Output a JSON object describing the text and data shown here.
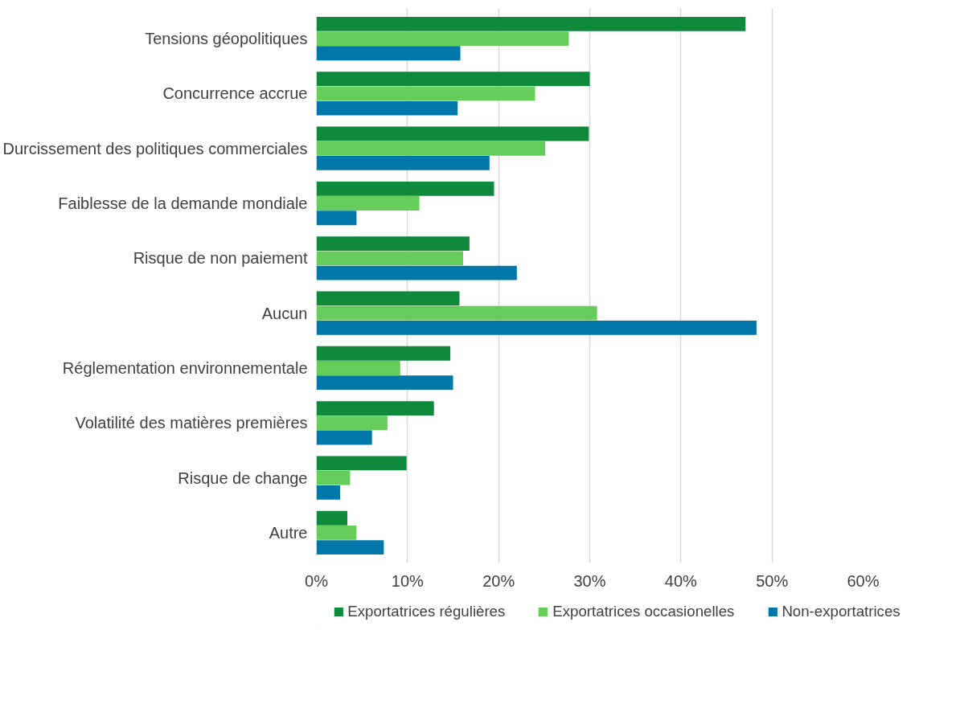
{
  "chart_data": {
    "type": "bar",
    "orientation": "horizontal",
    "categories": [
      "Tensions géopolitiques",
      "Concurrence accrue",
      "Durcissement des politiques commerciales",
      "Faiblesse de la demande mondiale",
      "Risque de non paiement",
      "Aucun",
      "Réglementation environnementale",
      "Volatilité des matières premières",
      "Risque de change",
      "Autre"
    ],
    "series": [
      {
        "name": "Exportatrices régulières",
        "color": "#0f8a3c",
        "values": [
          47.1,
          30.0,
          29.9,
          19.5,
          16.8,
          15.7,
          14.7,
          12.9,
          9.9,
          3.4
        ]
      },
      {
        "name": "Exportatrices occasionelles",
        "color": "#66cc5a",
        "values": [
          27.7,
          24.0,
          25.1,
          11.3,
          16.1,
          30.8,
          9.2,
          7.8,
          3.7,
          4.4
        ]
      },
      {
        "name": "Non-exportatrices",
        "color": "#0077a8",
        "values": [
          15.8,
          15.5,
          19.0,
          4.4,
          22.0,
          48.3,
          15.0,
          6.1,
          2.6,
          7.4
        ]
      }
    ],
    "xlim": [
      0,
      60
    ],
    "xticks": [
      {
        "value": 0,
        "label": "0%"
      },
      {
        "value": 10,
        "label": "10%"
      },
      {
        "value": 20,
        "label": "20%"
      },
      {
        "value": 30,
        "label": "30%"
      },
      {
        "value": 40,
        "label": "40%"
      },
      {
        "value": 50,
        "label": "50%"
      },
      {
        "value": 60,
        "label": "60%"
      }
    ],
    "grid": "x",
    "legend": "bottom"
  }
}
